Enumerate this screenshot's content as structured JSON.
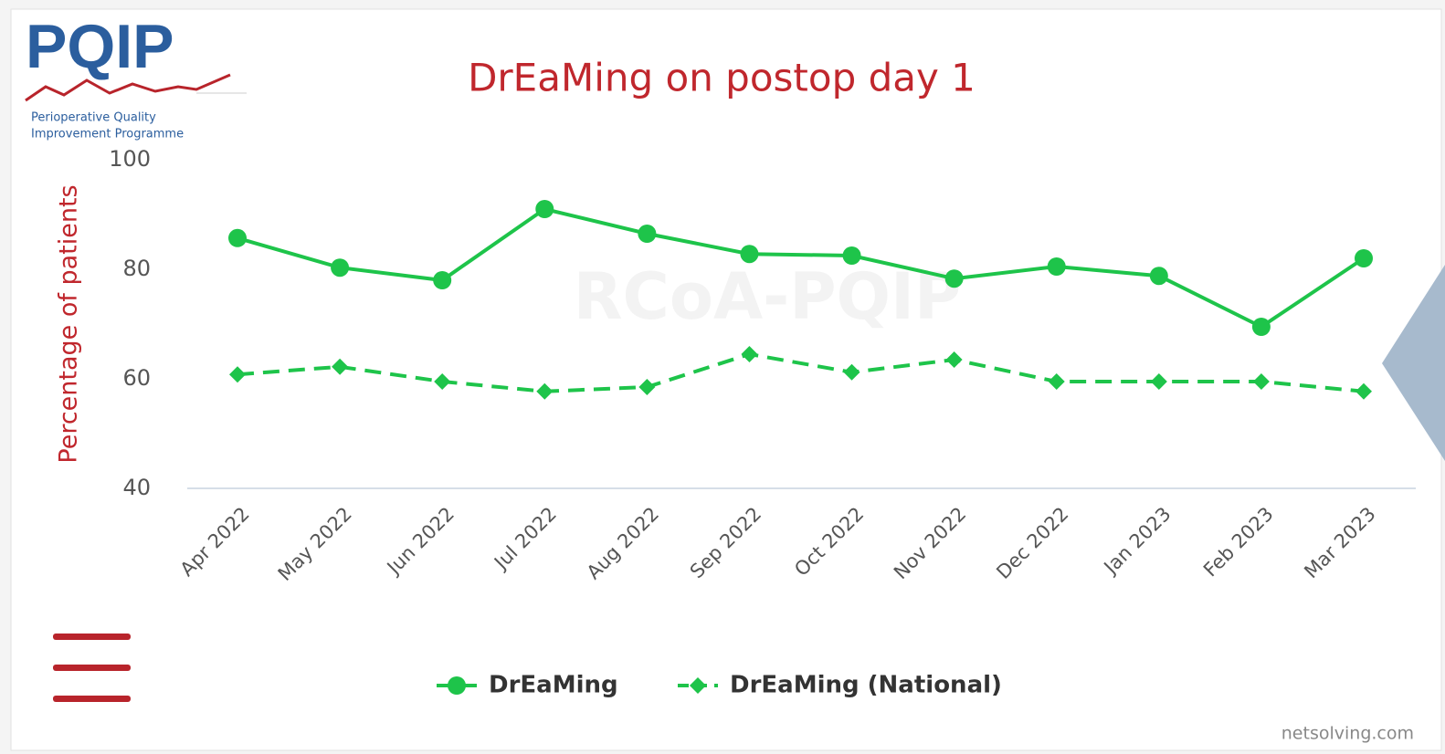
{
  "logo": {
    "name": "PQIP",
    "line1": "Perioperative Quality",
    "line2": "Improvement Programme"
  },
  "watermark": "RCoA-PQIP",
  "credit": "netsolving.com",
  "chart_data": {
    "type": "line",
    "title": "DrEaMing on postop day 1",
    "ylabel": "Percentage of patients",
    "categories": [
      "Apr 2022",
      "May 2022",
      "Jun 2022",
      "Jul 2022",
      "Aug 2022",
      "Sep 2022",
      "Oct 2022",
      "Nov 2022",
      "Dec 2022",
      "Jan 2023",
      "Feb 2023",
      "Mar 2023"
    ],
    "series": [
      {
        "name": "DrEaMing",
        "color": "#1ec44a",
        "dash": false,
        "marker": "circle",
        "values": [
          85.7,
          80.3,
          78,
          91,
          86.5,
          82.8,
          82.5,
          78.3,
          80.5,
          78.8,
          69.5,
          82
        ]
      },
      {
        "name": "DrEaMing (National)",
        "color": "#1ec44a",
        "dash": true,
        "marker": "diamond",
        "values": [
          60.8,
          62.2,
          59.5,
          57.7,
          58.5,
          64.5,
          61.2,
          63.5,
          59.5,
          59.5,
          59.5,
          57.7
        ]
      }
    ],
    "ylim": [
      40,
      100
    ],
    "yticks": [
      40,
      60,
      80,
      100
    ],
    "grid": false,
    "legend": "bottom"
  }
}
